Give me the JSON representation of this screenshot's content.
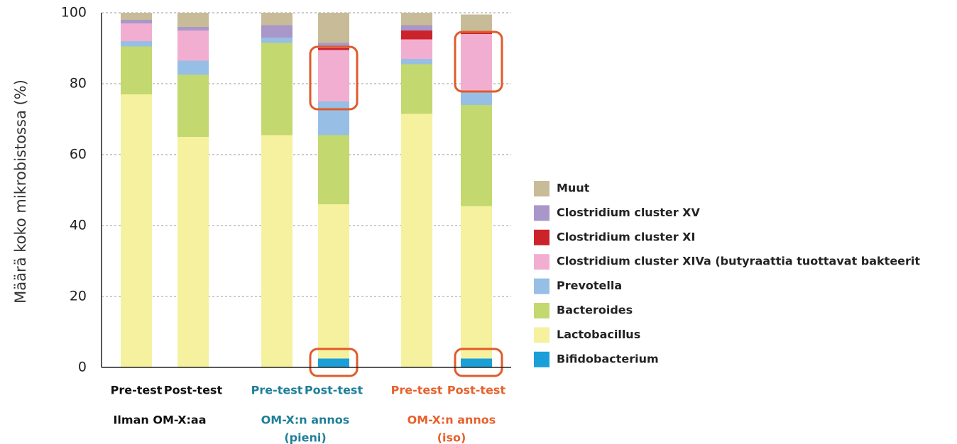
{
  "chart_data": {
    "type": "stacked_bar",
    "y_label": "Määrä koko mikrobistossa (%)",
    "categories": [
      "Pre-test",
      "Post-test",
      "Pre-test",
      "Post-test",
      "Pre-test",
      "Post-test"
    ],
    "groups": [
      {
        "label": [
          "Ilman OM-X:aa"
        ],
        "color": "#111111"
      },
      {
        "label": [
          "OM-X:n annos",
          "(pieni)"
        ],
        "color": "#1e7f99"
      },
      {
        "label": [
          "OM-X:n annos",
          "(iso)"
        ],
        "color": "#e8602c"
      }
    ],
    "series": [
      {
        "name": "Bifidobacterium",
        "color": "#1a9fd9",
        "values": [
          0,
          0,
          0,
          2.5,
          0,
          2.5
        ]
      },
      {
        "name": "Lactobacillus",
        "color": "#f5f19f",
        "values": [
          77,
          65,
          65.5,
          43.5,
          71.5,
          43
        ]
      },
      {
        "name": "Bacteroides",
        "color": "#c3d86e",
        "values": [
          13.5,
          17.5,
          26,
          19.5,
          14,
          28.5
        ]
      },
      {
        "name": "Prevotella",
        "color": "#97bfe6",
        "values": [
          1.5,
          4,
          1.5,
          9.5,
          1.5,
          4
        ]
      },
      {
        "name": "Clostridium cluster XIVa (butyraattia tuottavat bakteerit",
        "color": "#f2aed0",
        "values": [
          5,
          8.5,
          0,
          14.5,
          5.5,
          16
        ]
      },
      {
        "name": "Clostridium cluster XI",
        "color": "#cc2229",
        "values": [
          0,
          0,
          0,
          0.5,
          2.5,
          0.5
        ]
      },
      {
        "name": "Clostridium cluster XV",
        "color": "#a897c8",
        "values": [
          1,
          1,
          3.5,
          1.5,
          1.5,
          0
        ]
      },
      {
        "name": "Muut",
        "color": "#c8bb98",
        "values": [
          2,
          4,
          3.5,
          8.5,
          3.5,
          5
        ]
      }
    ],
    "ylim": [
      0,
      100
    ],
    "yticks": [
      0,
      20,
      40,
      60,
      80,
      100
    ],
    "grid": true
  }
}
